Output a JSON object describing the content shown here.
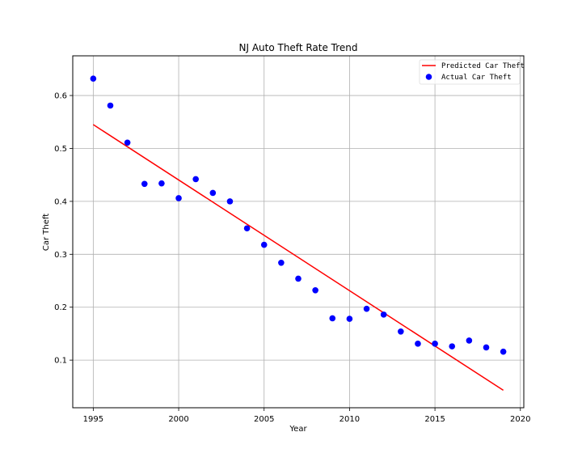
{
  "chart_data": {
    "type": "scatter",
    "title": "NJ Auto Theft Rate Trend",
    "xlabel": "Year",
    "ylabel": "Car Theft",
    "xlim": [
      1993.8,
      2020.2
    ],
    "ylim": [
      0.01,
      0.675
    ],
    "xticks": [
      1995,
      2000,
      2005,
      2010,
      2015,
      2020
    ],
    "yticks": [
      0.1,
      0.2,
      0.3,
      0.4,
      0.5,
      0.6
    ],
    "grid": true,
    "legend_position": "top-right",
    "series": [
      {
        "name": "Predicted Car Theft",
        "kind": "line",
        "color": "#ff0000",
        "x": [
          1995,
          2019
        ],
        "y": [
          0.545,
          0.043
        ]
      },
      {
        "name": "Actual Car Theft",
        "kind": "scatter",
        "color": "#0000ff",
        "x": [
          1995,
          1996,
          1997,
          1998,
          1999,
          2000,
          2001,
          2002,
          2003,
          2004,
          2005,
          2006,
          2007,
          2008,
          2009,
          2010,
          2011,
          2012,
          2013,
          2014,
          2015,
          2016,
          2017,
          2018,
          2019
        ],
        "y": [
          0.632,
          0.581,
          0.511,
          0.433,
          0.434,
          0.406,
          0.442,
          0.416,
          0.4,
          0.349,
          0.318,
          0.284,
          0.254,
          0.232,
          0.179,
          0.178,
          0.197,
          0.186,
          0.154,
          0.131,
          0.131,
          0.126,
          0.137,
          0.124,
          0.116
        ]
      }
    ]
  }
}
